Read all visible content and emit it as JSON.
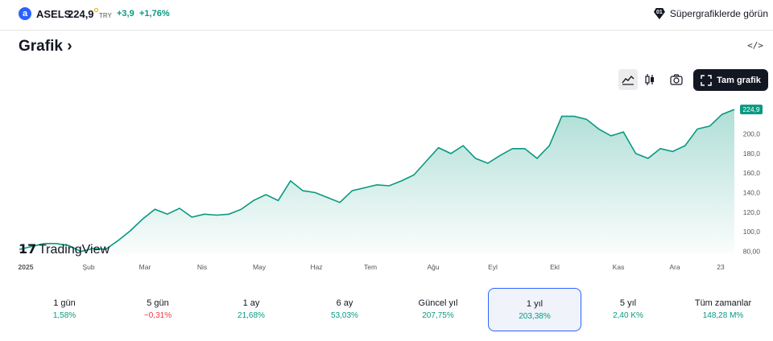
{
  "header": {
    "logo_letter": "a",
    "symbol": "ASELS",
    "price": "224,9",
    "currency": "TRY",
    "change": "+3,9",
    "change_pct": "+1,76%",
    "supercharts_label": "Süpergrafiklerde görün"
  },
  "section": {
    "title": "Grafik",
    "title_arrow": "›",
    "embed_glyph": "</>"
  },
  "toolbar": {
    "fullscreen_label": "Tam grafik",
    "active_style": "area-chart-icon"
  },
  "watermark": "TradingView",
  "colors": {
    "accent": "#089981",
    "negative": "#f23645",
    "selected_border": "#2962ff",
    "dark": "#131722"
  },
  "chart_data": {
    "type": "area",
    "x_labels": [
      "2025",
      "Şub",
      "Mar",
      "Nis",
      "May",
      "Haz",
      "Tem",
      "Ağu",
      "Eyl",
      "Ekl",
      "Kas",
      "Ara",
      "23"
    ],
    "y_ticks": [
      "200,0",
      "180,0",
      "160,0",
      "140,0",
      "120,0",
      "100,0",
      "80,00"
    ],
    "ylim": [
      78,
      230
    ],
    "last_price_label": "224,9",
    "values": [
      82,
      85,
      88,
      88,
      86,
      80,
      83,
      82,
      91,
      101,
      113,
      123,
      118,
      124,
      115,
      118,
      117,
      118,
      123,
      132,
      138,
      132,
      152,
      142,
      140,
      135,
      130,
      142,
      145,
      148,
      147,
      152,
      158,
      172,
      186,
      180,
      188,
      175,
      170,
      178,
      185,
      185,
      175,
      188,
      218,
      218,
      215,
      205,
      198,
      202,
      180,
      175,
      185,
      182,
      188,
      205,
      208,
      220,
      225
    ]
  },
  "periods": [
    {
      "label": "1 gün",
      "value": "1,58%",
      "neg": false,
      "selected": false
    },
    {
      "label": "5 gün",
      "value": "−0,31%",
      "neg": true,
      "selected": false
    },
    {
      "label": "1 ay",
      "value": "21,68%",
      "neg": false,
      "selected": false
    },
    {
      "label": "6 ay",
      "value": "53,03%",
      "neg": false,
      "selected": false
    },
    {
      "label": "Güncel yıl",
      "value": "207,75%",
      "neg": false,
      "selected": false
    },
    {
      "label": "1 yıl",
      "value": "203,38%",
      "neg": false,
      "selected": true
    },
    {
      "label": "5 yıl",
      "value": "2,40 K%",
      "neg": false,
      "selected": false
    },
    {
      "label": "Tüm zamanlar",
      "value": "148,28 M%",
      "neg": false,
      "selected": false
    }
  ]
}
